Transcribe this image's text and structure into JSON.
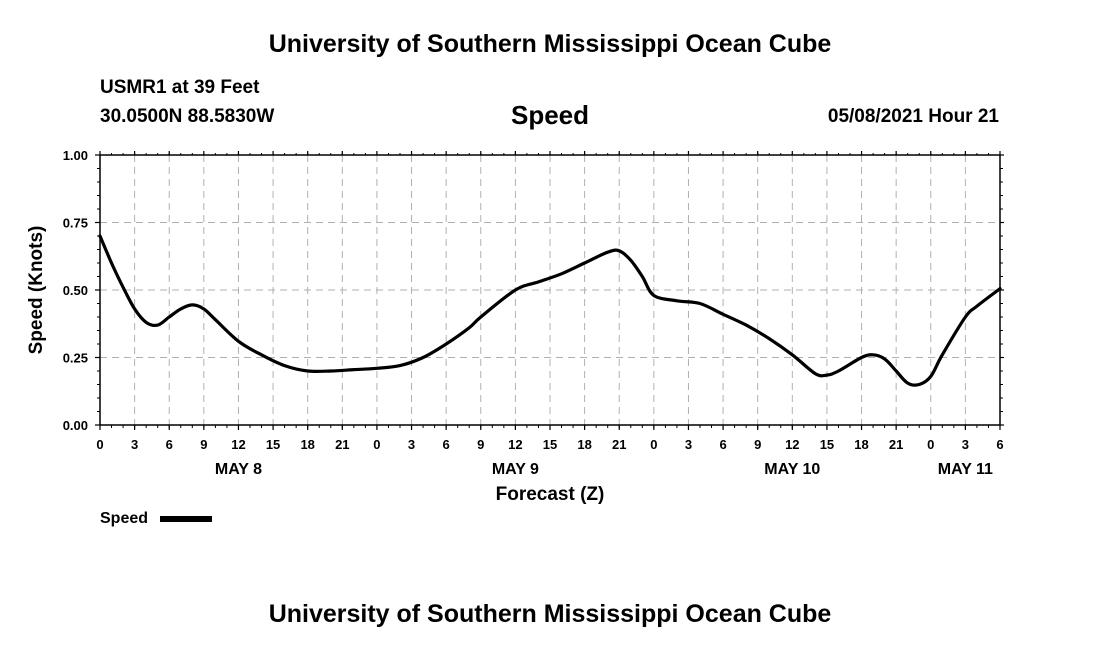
{
  "page": {
    "title_top": "University of Southern Mississippi Ocean Cube",
    "title_bottom": "University of Southern Mississippi Ocean Cube",
    "station": "USMR1 at 39 Feet",
    "coords": "30.0500N  88.5830W",
    "datetime": "05/08/2021 Hour 21"
  },
  "chart_data": {
    "type": "line",
    "title": "Speed",
    "xlabel": "Forecast (Z)",
    "ylabel": "Speed (Knots)",
    "x_unit": "hours from 05/08 00Z",
    "xlim": [
      0,
      78
    ],
    "ylim": [
      0,
      1.0
    ],
    "y_ticks": [
      "0.00",
      "0.25",
      "0.50",
      "0.75",
      "1.00"
    ],
    "y_tick_values": [
      0,
      0.25,
      0.5,
      0.75,
      1.0
    ],
    "x_ticks": [
      "0",
      "3",
      "6",
      "9",
      "12",
      "15",
      "18",
      "21",
      "0",
      "3",
      "6",
      "9",
      "12",
      "15",
      "18",
      "21",
      "0",
      "3",
      "6",
      "9",
      "12",
      "15",
      "18",
      "21",
      "0",
      "3",
      "6"
    ],
    "day_labels": [
      {
        "label": "MAY 8",
        "hour": 12
      },
      {
        "label": "MAY 9",
        "hour": 36
      },
      {
        "label": "MAY 10",
        "hour": 60
      },
      {
        "label": "MAY 11",
        "hour": 75
      }
    ],
    "grid": true,
    "series": [
      {
        "name": "Speed",
        "color": "#000000",
        "x": [
          0,
          1,
          2,
          3,
          4,
          5,
          6,
          7,
          8,
          9,
          10,
          12,
          14,
          16,
          18,
          20,
          22,
          24,
          26,
          28,
          30,
          32,
          33,
          36,
          38,
          40,
          42,
          44,
          45,
          46,
          47,
          48,
          50,
          52,
          54,
          56,
          58,
          60,
          62,
          63,
          64,
          66,
          67,
          68,
          69,
          70,
          71,
          72,
          73,
          75,
          76,
          78
        ],
        "values": [
          0.7,
          0.6,
          0.51,
          0.43,
          0.38,
          0.37,
          0.4,
          0.43,
          0.445,
          0.43,
          0.39,
          0.31,
          0.26,
          0.22,
          0.2,
          0.2,
          0.205,
          0.21,
          0.22,
          0.25,
          0.3,
          0.36,
          0.4,
          0.5,
          0.53,
          0.56,
          0.6,
          0.64,
          0.645,
          0.61,
          0.55,
          0.48,
          0.46,
          0.45,
          0.41,
          0.37,
          0.32,
          0.26,
          0.19,
          0.185,
          0.2,
          0.25,
          0.26,
          0.245,
          0.2,
          0.155,
          0.15,
          0.18,
          0.26,
          0.4,
          0.44,
          0.505
        ]
      }
    ],
    "legend": {
      "label": "Speed",
      "placement": "bottom-left"
    }
  }
}
